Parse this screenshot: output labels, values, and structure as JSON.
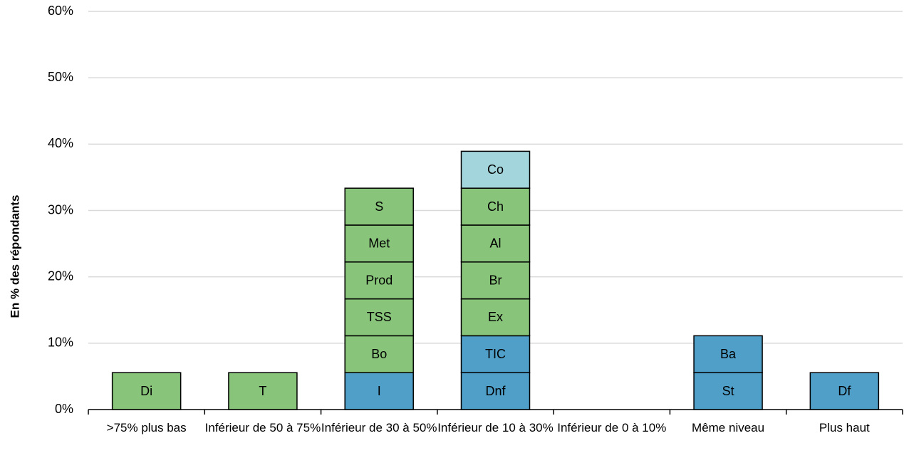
{
  "chart_data": {
    "type": "stacked-bar",
    "y_label": "En % des répondants",
    "categories": [
      ">75% plus bas",
      "Inférieur de 50 à 75%",
      "Inférieur de 30 à 50%",
      "Inférieur de 10 à 30%",
      "Inférieur de 0 à 10%",
      "Même niveau",
      "Plus haut"
    ],
    "stacks": [
      [
        {
          "label": "Di",
          "value": 5.56,
          "color": "#88c57a"
        }
      ],
      [
        {
          "label": "T",
          "value": 5.56,
          "color": "#88c57a"
        }
      ],
      [
        {
          "label": "I",
          "value": 5.56,
          "color": "#4f9fc9"
        },
        {
          "label": "Bo",
          "value": 5.56,
          "color": "#88c57a"
        },
        {
          "label": "TSS",
          "value": 5.56,
          "color": "#88c57a"
        },
        {
          "label": "Prod",
          "value": 5.56,
          "color": "#88c57a"
        },
        {
          "label": "Met",
          "value": 5.56,
          "color": "#88c57a"
        },
        {
          "label": "S",
          "value": 5.56,
          "color": "#88c57a"
        }
      ],
      [
        {
          "label": "Dnf",
          "value": 5.56,
          "color": "#4f9fc9"
        },
        {
          "label": "TIC",
          "value": 5.56,
          "color": "#4f9fc9"
        },
        {
          "label": "Ex",
          "value": 5.56,
          "color": "#88c57a"
        },
        {
          "label": "Br",
          "value": 5.56,
          "color": "#88c57a"
        },
        {
          "label": "Al",
          "value": 5.56,
          "color": "#88c57a"
        },
        {
          "label": "Ch",
          "value": 5.56,
          "color": "#88c57a"
        },
        {
          "label": "Co",
          "value": 5.56,
          "color": "#a3d6dc"
        }
      ],
      [],
      [
        {
          "label": "St",
          "value": 5.56,
          "color": "#4f9fc9"
        },
        {
          "label": "Ba",
          "value": 5.56,
          "color": "#4f9fc9"
        }
      ],
      [
        {
          "label": "Df",
          "value": 5.56,
          "color": "#4f9fc9"
        }
      ]
    ],
    "ylim": [
      0,
      60
    ],
    "yticks": [
      {
        "value": 0,
        "label": "0%"
      },
      {
        "value": 10,
        "label": "10%"
      },
      {
        "value": 20,
        "label": "20%"
      },
      {
        "value": 30,
        "label": "30%"
      },
      {
        "value": 40,
        "label": "40%"
      },
      {
        "value": 50,
        "label": "50%"
      },
      {
        "value": 60,
        "label": "60%"
      }
    ],
    "grid": true
  }
}
